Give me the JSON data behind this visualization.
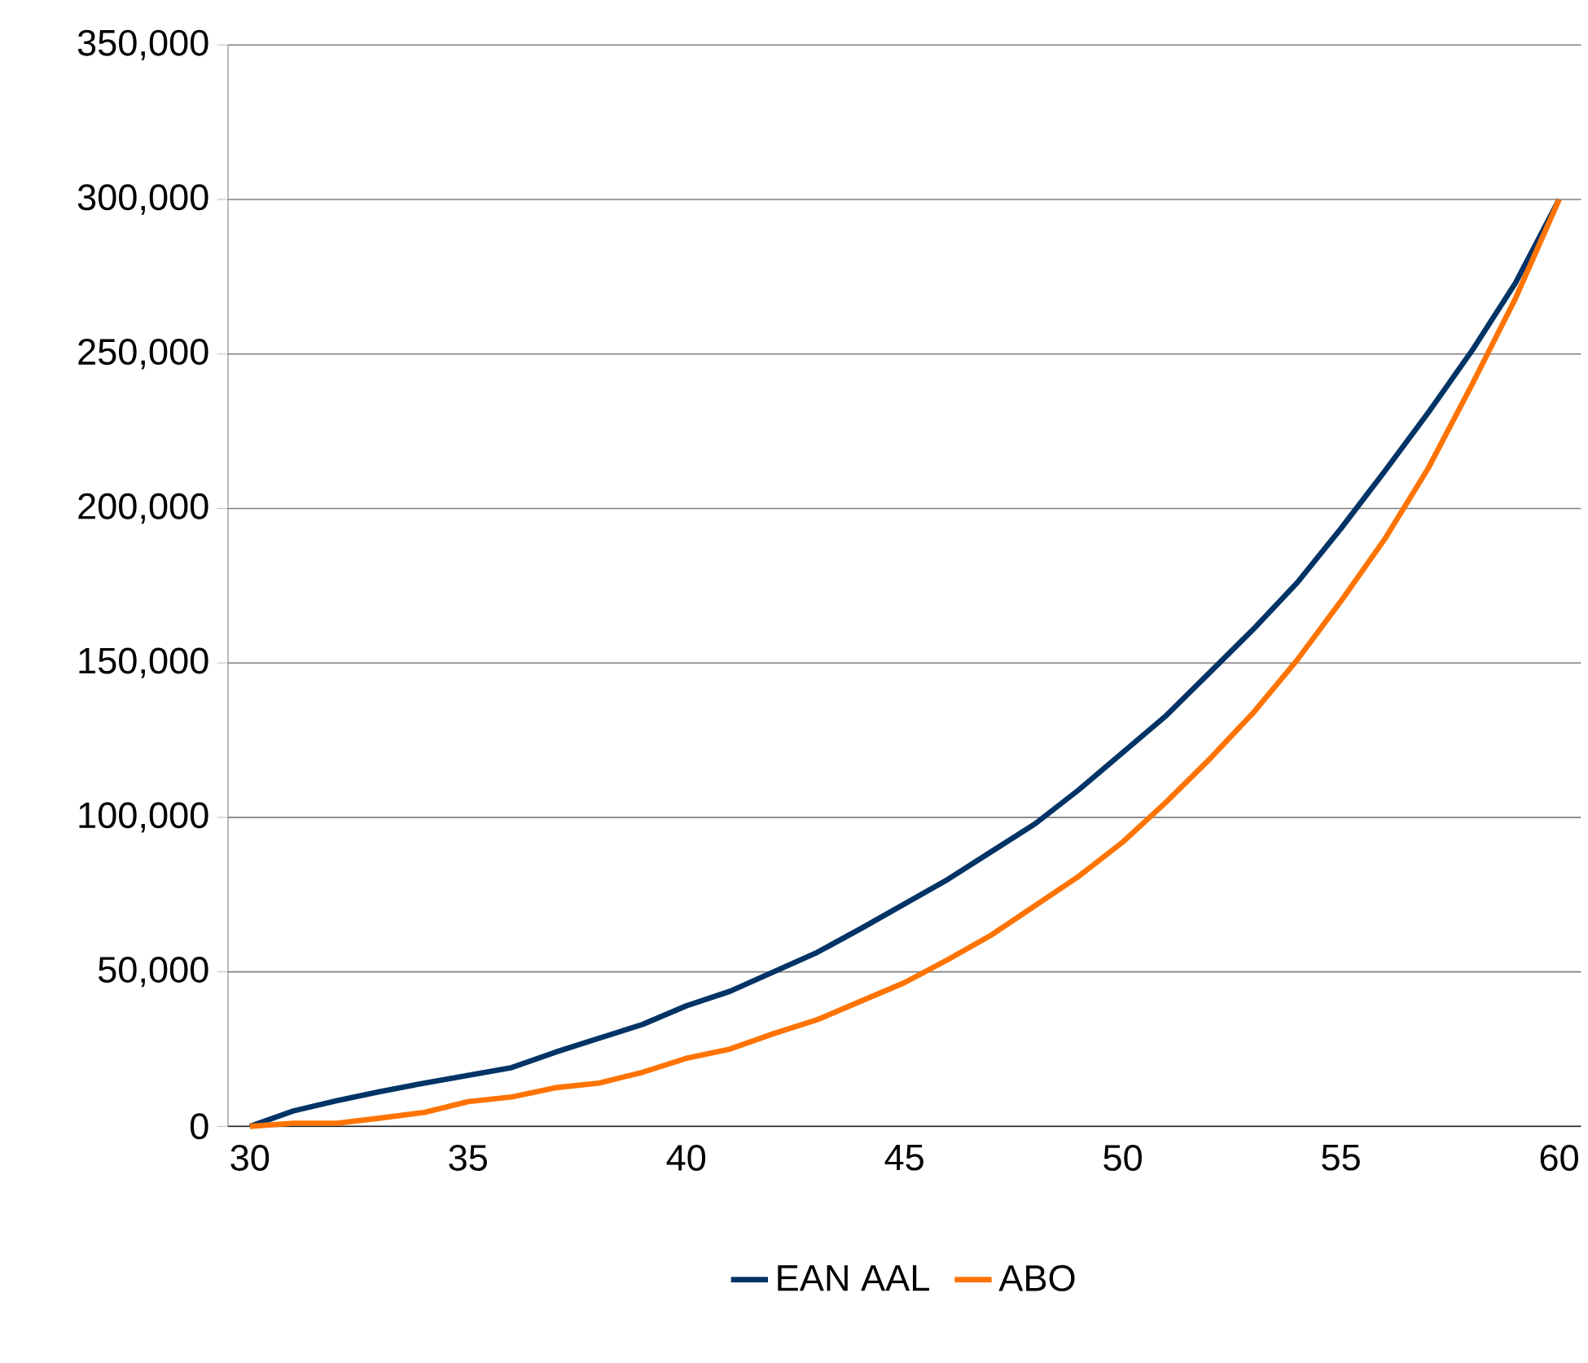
{
  "chart_data": {
    "type": "line",
    "categories": [
      "30",
      null,
      null,
      null,
      null,
      "35",
      null,
      null,
      null,
      null,
      "40",
      null,
      null,
      null,
      null,
      "45",
      null,
      null,
      null,
      null,
      "50",
      null,
      null,
      null,
      null,
      "55",
      null,
      null,
      null,
      null,
      "60"
    ],
    "series": [
      {
        "name": "EAN AAL",
        "color": "#003366",
        "values": [
          0,
          5000,
          8300,
          11300,
          14000,
          16500,
          19000,
          24000,
          28500,
          33000,
          39000,
          43700,
          50000,
          56300,
          64000,
          72000,
          80000,
          89000,
          98000,
          109000,
          121000,
          133000,
          147000,
          161000,
          176000,
          193500,
          212000,
          231000,
          251000,
          273000,
          300000
        ]
      },
      {
        "name": "ABO",
        "color": "#ff7300",
        "values": [
          0,
          1000,
          1000,
          2700,
          4500,
          8000,
          9500,
          12500,
          14000,
          17500,
          22000,
          25000,
          30000,
          34500,
          40500,
          46500,
          54000,
          62000,
          71500,
          81000,
          92000,
          105000,
          119000,
          134000,
          151000,
          170000,
          190000,
          213000,
          240000,
          268000,
          300000
        ]
      }
    ],
    "ylim": [
      0,
      350000
    ],
    "yticks": [
      {
        "value": 0,
        "label": "0"
      },
      {
        "value": 50000,
        "label": "50,000"
      },
      {
        "value": 100000,
        "label": "100,000"
      },
      {
        "value": 150000,
        "label": "150,000"
      },
      {
        "value": 200000,
        "label": "200,000"
      },
      {
        "value": 250000,
        "label": "250,000"
      },
      {
        "value": 300000,
        "label": "300,000"
      },
      {
        "value": 350000,
        "label": "350,000"
      }
    ],
    "grid": "y",
    "legend": "bottom",
    "marker": "none",
    "line_style": "solid"
  }
}
